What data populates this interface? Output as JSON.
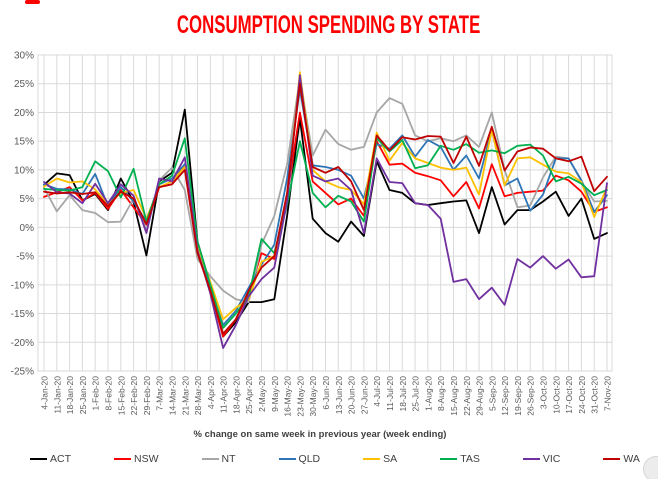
{
  "title": {
    "text": "CONSUMPTION SPENDING BY STATE",
    "color": "#FF0000"
  },
  "chart_data": {
    "type": "line",
    "title": "CONSUMPTION SPENDING BY STATE",
    "xlabel": "% change on same week in previous year (week ending)",
    "ylabel": "",
    "ylim": [
      -25,
      30
    ],
    "ytick_step": 5,
    "ytick_suffix": "%",
    "grid": true,
    "legend_position": "bottom",
    "grid_color": "#D9D9D9",
    "tick_label_color": "#595959",
    "categories": [
      "4-Jan-20",
      "11-Jan-20",
      "18-Jan-20",
      "25-Jan-20",
      "1-Feb-20",
      "8-Feb-20",
      "15-Feb-20",
      "22-Feb-20",
      "29-Feb-20",
      "7-Mar-20",
      "14-Mar-20",
      "21-Mar-20",
      "28-Mar-20",
      "4-Apr-20",
      "11-Apr-20",
      "18-Apr-20",
      "25-Apr-20",
      "2-May-20",
      "9-May-20",
      "16-May-20",
      "23-May-20",
      "30-May-20",
      "6-Jun-20",
      "13-Jun-20",
      "20-Jun-20",
      "27-Jun-20",
      "4-Jul-20",
      "11-Jul-20",
      "18-Jul-20",
      "25-Jul-20",
      "1-Aug-20",
      "8-Aug-20",
      "15-Aug-20",
      "22-Aug-20",
      "29-Aug-20",
      "5-Sep-20",
      "12-Sep-20",
      "19-Sep-20",
      "26-Sep-20",
      "3-Oct-20",
      "10-Oct-20",
      "17-Oct-20",
      "24-Oct-20",
      "31-Oct-20",
      "7-Nov-20"
    ],
    "series": [
      {
        "name": "ACT",
        "color": "#000000",
        "values": [
          7.4,
          9.4,
          9.1,
          4.7,
          5.8,
          3.0,
          8.5,
          4.4,
          -4.9,
          8.0,
          9.5,
          20.5,
          -2.5,
          -10.0,
          -19.0,
          -16.5,
          -13.0,
          -13.0,
          -12.5,
          2.0,
          19.0,
          1.5,
          -1.0,
          -2.5,
          1.0,
          -1.5,
          11.5,
          6.5,
          6.0,
          4.2,
          3.9,
          4.2,
          4.5,
          4.7,
          -1.0,
          7.0,
          0.5,
          3.0,
          3.0,
          4.5,
          6.2,
          2.0,
          5.0,
          -2.0,
          -1.0
        ]
      },
      {
        "name": "NSW",
        "color": "#FF0000",
        "values": [
          5.3,
          6.1,
          7.0,
          4.7,
          6.0,
          3.2,
          6.5,
          3.5,
          0.5,
          7.0,
          7.5,
          11.0,
          -4.5,
          -11.0,
          -19.0,
          -16.0,
          -11.5,
          -4.5,
          -5.5,
          5.5,
          20.0,
          8.0,
          6.0,
          4.0,
          5.0,
          2.0,
          15.0,
          10.9,
          11.1,
          9.5,
          8.9,
          8.2,
          5.4,
          7.9,
          3.3,
          11.0,
          5.4,
          6.0,
          6.2,
          6.4,
          9.0,
          8.2,
          6.2,
          2.7,
          3.5
        ]
      },
      {
        "name": "NT",
        "color": "#A6A6A6",
        "values": [
          6.9,
          2.8,
          5.6,
          3.0,
          2.5,
          0.9,
          1.0,
          5.0,
          -0.5,
          8.2,
          10.4,
          6.5,
          -5.5,
          -8.5,
          -11.0,
          -12.5,
          -13.0,
          -3.0,
          2.0,
          11.0,
          26.0,
          12.5,
          17.0,
          14.5,
          13.5,
          14.0,
          20.0,
          22.5,
          21.5,
          16.0,
          15.0,
          15.5,
          15.0,
          16.0,
          14.0,
          20.0,
          10.0,
          3.5,
          3.8,
          8.7,
          12.3,
          12.0,
          8.0,
          4.5,
          4.6
        ]
      },
      {
        "name": "QLD",
        "color": "#2E75B6",
        "values": [
          7.5,
          6.7,
          6.6,
          5.8,
          9.3,
          3.7,
          7.0,
          4.5,
          1.0,
          7.5,
          8.5,
          11.0,
          -3.0,
          -10.5,
          -17.0,
          -14.5,
          -10.5,
          -6.5,
          -3.0,
          8.5,
          24.0,
          10.8,
          10.5,
          10.0,
          9.0,
          5.0,
          14.5,
          13.7,
          16.0,
          12.3,
          15.2,
          14.0,
          10.0,
          12.5,
          8.5,
          17.0,
          7.3,
          8.5,
          2.9,
          5.7,
          12.0,
          12.0,
          8.2,
          2.7,
          5.6
        ]
      },
      {
        "name": "SA",
        "color": "#FFC000",
        "values": [
          7.1,
          8.5,
          7.8,
          8.0,
          6.6,
          3.9,
          6.0,
          6.5,
          1.5,
          7.0,
          8.0,
          10.5,
          -3.5,
          -9.5,
          -16.0,
          -14.0,
          -12.5,
          -6.0,
          -5.0,
          5.0,
          27.0,
          10.0,
          8.0,
          7.0,
          6.5,
          4.0,
          16.5,
          11.6,
          14.7,
          12.0,
          11.2,
          10.4,
          10.0,
          10.4,
          5.7,
          17.0,
          7.3,
          12.0,
          12.2,
          10.9,
          9.7,
          9.4,
          7.9,
          1.8,
          7.0
        ]
      },
      {
        "name": "TAS",
        "color": "#00B050",
        "values": [
          6.7,
          6.5,
          6.4,
          7.0,
          11.5,
          9.8,
          5.2,
          10.2,
          1.0,
          7.5,
          9.0,
          15.5,
          -2.5,
          -10.0,
          -17.5,
          -15.0,
          -12.0,
          -2.0,
          -4.5,
          4.0,
          15.0,
          6.0,
          3.5,
          5.5,
          4.5,
          1.0,
          15.5,
          13.2,
          15.2,
          10.3,
          10.8,
          14.2,
          13.5,
          14.5,
          13.0,
          13.4,
          12.9,
          14.2,
          14.4,
          12.5,
          8.0,
          8.8,
          7.6,
          5.6,
          6.5
        ]
      },
      {
        "name": "VIC",
        "color": "#7030A0",
        "values": [
          7.9,
          6.1,
          5.9,
          4.2,
          7.6,
          4.2,
          7.5,
          5.5,
          -1.0,
          8.5,
          8.0,
          12.2,
          -4.0,
          -11.5,
          -21.0,
          -17.0,
          -12.0,
          -9.0,
          -7.0,
          4.5,
          26.5,
          9.0,
          8.0,
          8.5,
          6.5,
          -1.0,
          12.0,
          7.9,
          7.7,
          4.2,
          3.9,
          1.5,
          -9.5,
          -9.0,
          -12.5,
          -10.5,
          -13.5,
          -5.5,
          -7.0,
          -5.0,
          -7.2,
          -5.6,
          -8.7,
          -8.5,
          7.7
        ]
      },
      {
        "name": "WA",
        "color": "#C00000",
        "values": [
          6.2,
          5.9,
          6.1,
          5.8,
          6.1,
          3.7,
          6.2,
          5.0,
          0.5,
          7.0,
          7.5,
          10.0,
          -4.5,
          -11.0,
          -18.5,
          -16.0,
          -11.0,
          -7.0,
          -5.0,
          6.0,
          25.0,
          10.5,
          9.5,
          10.5,
          8.0,
          3.0,
          16.0,
          13.4,
          15.7,
          15.3,
          15.9,
          15.8,
          11.2,
          15.8,
          10.7,
          17.5,
          9.9,
          13.2,
          13.9,
          13.7,
          12.0,
          11.5,
          12.3,
          6.3,
          8.8
        ]
      }
    ]
  },
  "decorations": {
    "red_top_mark": "#FF0000",
    "floating_circle": "#ECECEC"
  }
}
